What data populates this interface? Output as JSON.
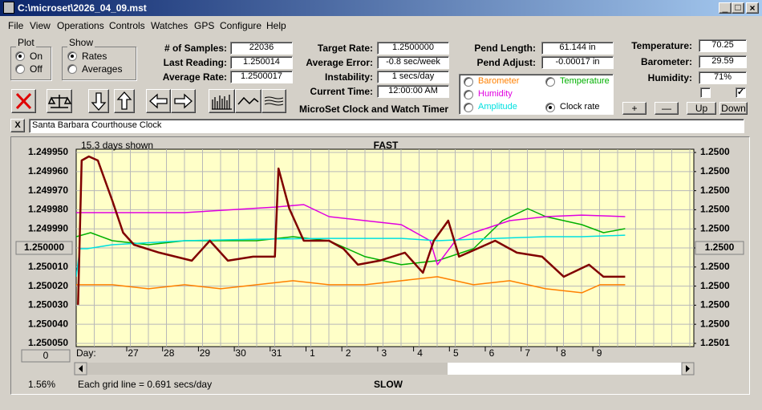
{
  "window": {
    "title": "C:\\microset\\2026_04_09.mst"
  },
  "menu": [
    "File",
    "View",
    "Operations",
    "Controls",
    "Watches",
    "GPS",
    "Configure",
    "Help"
  ],
  "plot_group": {
    "title": "Plot",
    "options": [
      "On",
      "Off"
    ],
    "selected": 0
  },
  "show_group": {
    "title": "Show",
    "options": [
      "Rates",
      "Averages"
    ],
    "selected": 0
  },
  "stats": [
    {
      "label": "# of Samples:",
      "value": "22036"
    },
    {
      "label": "Last Reading:",
      "value": "1.250014"
    },
    {
      "label": "Average Rate:",
      "value": "1.2500017"
    }
  ],
  "timing": [
    {
      "label": "Target Rate:",
      "value": "1.2500000"
    },
    {
      "label": "Average Error:",
      "value": "-0.8 sec/week"
    },
    {
      "label": "Instability:",
      "value": "1 secs/day"
    },
    {
      "label": "Current Time:",
      "value": "12:00:00 AM"
    }
  ],
  "pendulum": [
    {
      "label": "Pend Length:",
      "value": "61.144 in"
    },
    {
      "label": "Pend Adjust:",
      "value": "-0.00017 in"
    }
  ],
  "sensors": [
    {
      "label": "Temperature:",
      "value": "70.25"
    },
    {
      "label": "Barometer:",
      "value": "29.59"
    },
    {
      "label": "Humidity:",
      "value": "71%"
    }
  ],
  "checkboxes": [
    false,
    true
  ],
  "sensor_buttons": [
    "+",
    "—",
    "Up",
    "Down"
  ],
  "app_title": "MicroSet Clock and Watch Timer",
  "close_button": "X",
  "clock_name": "Santa Barbara Courthouse Clock",
  "chart_data": {
    "type": "line",
    "top_label": "FAST",
    "bottom_label": "SLOW",
    "span_note": "15.3 days shown",
    "grid_note": "Each grid line = 0.691 secs/day",
    "zoom": "1.56%",
    "reset_button": "0",
    "x_label": "Day:",
    "x_labels": [
      "27",
      "28",
      "29",
      "30",
      "31",
      "1",
      "2",
      "3",
      "4",
      "5",
      "6",
      "7",
      "8",
      "9"
    ],
    "xlim": [
      0,
      17.1
    ],
    "ylim": [
      1.2499483,
      1.2500517
    ],
    "invert_y": true,
    "grid": true,
    "yticks": [
      {
        "value": 1.24995,
        "label": "1.249950"
      },
      {
        "value": 1.24996,
        "label": "1.249960"
      },
      {
        "value": 1.24997,
        "label": "1.249970"
      },
      {
        "value": 1.24998,
        "label": "1.249980"
      },
      {
        "value": 1.24999,
        "label": "1.249990"
      },
      {
        "value": 1.25,
        "label": "1.250000"
      },
      {
        "value": 1.25001,
        "label": "1.250010"
      },
      {
        "value": 1.25002,
        "label": "1.250020"
      },
      {
        "value": 1.25003,
        "label": "1.250030"
      },
      {
        "value": 1.25004,
        "label": "1.250040"
      },
      {
        "value": 1.25005,
        "label": "1.250050"
      }
    ],
    "y2lim": [
      1.2499483,
      1.2500517
    ],
    "y2ticks": [
      {
        "value": 1.24995,
        "label": "1.2500"
      },
      {
        "value": 1.24996,
        "label": "1.2500"
      },
      {
        "value": 1.24997,
        "label": "1.2500"
      },
      {
        "value": 1.24998,
        "label": "1.2500"
      },
      {
        "value": 1.24999,
        "label": "1.2500"
      },
      {
        "value": 1.25,
        "label": "1.2500"
      },
      {
        "value": 1.25001,
        "label": "1.2500"
      },
      {
        "value": 1.25002,
        "label": "1.2500"
      },
      {
        "value": 1.25003,
        "label": "1.2500"
      },
      {
        "value": 1.25004,
        "label": "1.2500"
      },
      {
        "value": 1.25005,
        "label": "1.2501"
      }
    ],
    "selected_series": 4,
    "series": [
      {
        "name": "Barometer",
        "color": "#ff8000",
        "x": [
          0,
          1,
          2,
          3,
          4,
          5,
          6,
          7,
          8,
          9,
          10,
          11,
          12,
          13,
          14,
          14.5,
          15.2
        ],
        "values": [
          1.2500193,
          1.2500193,
          1.2500214,
          1.2500193,
          1.2500214,
          1.2500193,
          1.2500172,
          1.2500193,
          1.2500193,
          1.2500172,
          1.2500151,
          1.2500193,
          1.2500172,
          1.2500214,
          1.2500235,
          1.2500193,
          1.2500193
        ]
      },
      {
        "name": "Temperature",
        "color": "#00b000",
        "x": [
          0,
          0.4,
          1,
          2,
          3,
          4,
          5,
          6,
          7,
          8,
          9,
          10,
          11,
          11.8,
          12.5,
          13,
          14,
          14.6,
          15.2
        ],
        "values": [
          1.2499941,
          1.249992,
          1.2499962,
          1.2499983,
          1.2499962,
          1.2499962,
          1.2499962,
          1.2499941,
          1.2499962,
          1.2500046,
          1.2500088,
          1.2500067,
          1.2500004,
          1.2499857,
          1.2499794,
          1.2499836,
          1.2499878,
          1.249992,
          1.2499899
        ]
      },
      {
        "name": "Humidity",
        "color": "#e000e0",
        "x": [
          0,
          1,
          3,
          5.5,
          6.3,
          7,
          8,
          9,
          9.8,
          10,
          10.5,
          11,
          12,
          13,
          14,
          15.2
        ],
        "values": [
          1.2499815,
          1.2499815,
          1.2499815,
          1.2499786,
          1.2499773,
          1.2499836,
          1.2499857,
          1.2499878,
          1.2499962,
          1.2500088,
          1.2499962,
          1.249992,
          1.2499857,
          1.2499836,
          1.2499828,
          1.2499836
        ]
      },
      {
        "name": "Amplitude",
        "color": "#00e0e0",
        "x": [
          0,
          0.1,
          0.3,
          1,
          3,
          5,
          7,
          9,
          10,
          11,
          13,
          14,
          15.2
        ],
        "values": [
          1.2500151,
          1.2500004,
          1.2500004,
          1.2499983,
          1.2499962,
          1.2499954,
          1.249995,
          1.249995,
          1.2499962,
          1.2499954,
          1.2499941,
          1.2499941,
          1.2499933
        ]
      },
      {
        "name": "Clock rate",
        "color": "#800000",
        "x": [
          0.05,
          0.15,
          0.35,
          0.6,
          1,
          1.3,
          1.6,
          2.3,
          3.2,
          3.7,
          4.2,
          4.9,
          5.5,
          5.6,
          5.9,
          6.3,
          7,
          7.4,
          7.8,
          8.4,
          9.1,
          9.6,
          9.9,
          10.3,
          10.6,
          11.1,
          11.6,
          12.2,
          12.9,
          13.5,
          14.2,
          14.6,
          15.2
        ],
        "values": [
          1.2500298,
          1.2499542,
          1.2499521,
          1.2499542,
          1.2499752,
          1.249992,
          1.2499983,
          1.2500025,
          1.2500067,
          1.2499962,
          1.2500067,
          1.2500046,
          1.2500046,
          1.2499584,
          1.2499794,
          1.2499962,
          1.2499962,
          1.2500004,
          1.2500088,
          1.2500067,
          1.2500025,
          1.250013,
          1.2499962,
          1.2499857,
          1.2500046,
          1.2500004,
          1.2499962,
          1.2500025,
          1.2500046,
          1.2500151,
          1.2500088,
          1.2500151,
          1.2500151
        ]
      }
    ]
  }
}
